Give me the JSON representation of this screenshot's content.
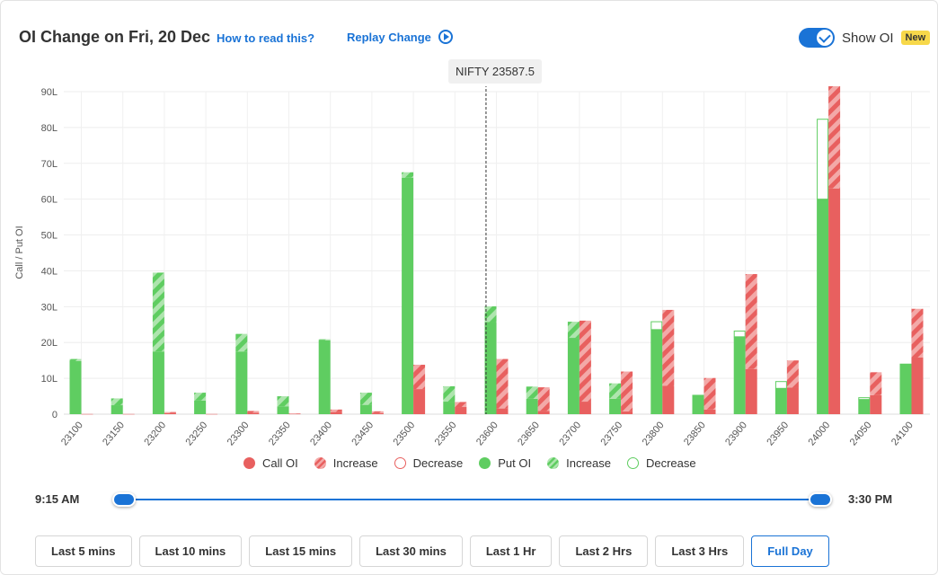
{
  "header": {
    "title": "OI Change on Fri, 20 Dec",
    "how_to_read": "How to read this?",
    "replay": "Replay Change",
    "toggle_label": "Show OI",
    "badge": "New"
  },
  "spot_tag": "NIFTY 23587.5",
  "colors": {
    "call": "#e8605f",
    "call_light": "#f3a9a8",
    "put": "#5fcd61",
    "put_light": "#aee5ae",
    "accent": "#1a73d6"
  },
  "chart_data": {
    "type": "bar",
    "ylabel": "Call / Put OI",
    "ylim": [
      0,
      90
    ],
    "yticks": [
      "0",
      "10L",
      "20L",
      "30L",
      "40L",
      "50L",
      "60L",
      "70L",
      "80L",
      "90L"
    ],
    "spot_strike": 23587.5,
    "categories": [
      "23100",
      "23150",
      "23200",
      "23250",
      "23300",
      "23350",
      "23400",
      "23450",
      "23500",
      "23550",
      "23600",
      "23650",
      "23700",
      "23750",
      "23800",
      "23850",
      "23900",
      "23950",
      "24000",
      "24050",
      "24100"
    ],
    "series": [
      {
        "name": "Put OI",
        "values": [
          14.8,
          2.5,
          17.5,
          3.8,
          17.5,
          2.2,
          20.6,
          2.6,
          66,
          3.5,
          25.7,
          4.3,
          21.3,
          4.3,
          23.6,
          5.4,
          21.6,
          7.2,
          60,
          4.1,
          14.1
        ]
      },
      {
        "name": "Put Increase",
        "values": [
          0.6,
          1.9,
          22,
          2.2,
          4.9,
          2.8,
          0.3,
          3.4,
          1.5,
          4.3,
          4.4,
          3.4,
          4.5,
          4.3,
          0,
          0,
          0,
          0,
          0,
          0,
          0
        ]
      },
      {
        "name": "Put Decrease",
        "values": [
          0,
          0,
          0,
          0,
          0,
          0,
          0,
          0,
          0,
          0,
          0,
          0,
          0,
          0,
          2.2,
          0,
          1.6,
          1.9,
          22.3,
          0.5,
          0
        ]
      },
      {
        "name": "Call OI",
        "values": [
          0.05,
          0.05,
          0.3,
          0.05,
          0.4,
          0.1,
          0.6,
          0.3,
          7,
          2,
          1.6,
          0.9,
          3.5,
          0.8,
          7.9,
          1.3,
          12.6,
          7.4,
          63,
          5.3,
          15.8
        ]
      },
      {
        "name": "Call Increase",
        "values": [
          0,
          0,
          0.3,
          0,
          0.5,
          0.1,
          0.7,
          0.5,
          6.8,
          1.4,
          13.8,
          6.6,
          22.6,
          11.1,
          21.2,
          8.8,
          26.5,
          7.6,
          30,
          6.4,
          13.6
        ]
      },
      {
        "name": "Call Decrease",
        "values": [
          0,
          0,
          0,
          0,
          0,
          0,
          0,
          0,
          0,
          0,
          0,
          0,
          0,
          0,
          0,
          0,
          0,
          0,
          0,
          0,
          0
        ]
      }
    ],
    "legend": [
      "Call OI",
      "Increase",
      "Decrease",
      "Put OI",
      "Increase",
      "Decrease"
    ],
    "legend_position": "bottom"
  },
  "slider": {
    "start": "9:15 AM",
    "end": "3:30 PM"
  },
  "time_buttons": [
    "Last 5 mins",
    "Last 10 mins",
    "Last 15 mins",
    "Last 30 mins",
    "Last 1 Hr",
    "Last 2 Hrs",
    "Last 3 Hrs",
    "Full Day"
  ],
  "active_button": "Full Day"
}
